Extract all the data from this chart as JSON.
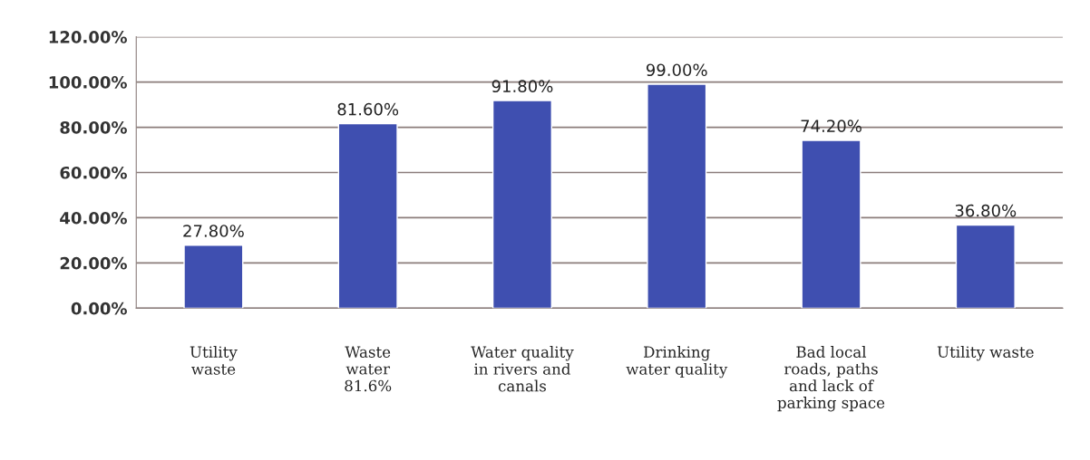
{
  "chart_data": {
    "type": "bar",
    "categories": [
      "Utility\nwaste",
      "Waste\nwater\n81.6%",
      "Water quality\nin rivers and\ncanals",
      "Drinking\nwater quality",
      "Bad local\nroads, paths\nand lack of\nparking space",
      "Utility waste"
    ],
    "values": [
      27.8,
      81.6,
      91.8,
      99.0,
      74.2,
      36.8
    ],
    "value_labels": [
      "27.80%",
      "81.60%",
      "91.80%",
      "99.00%",
      "74.20%",
      "36.80%"
    ],
    "color": "#3f4fb0",
    "ylim": [
      0,
      120
    ],
    "yticks": [
      {
        "value": 0,
        "label": "0.00%"
      },
      {
        "value": 20,
        "label": "20.00%"
      },
      {
        "value": 40,
        "label": "40.00%"
      },
      {
        "value": 60,
        "label": "60.00%"
      },
      {
        "value": 80,
        "label": "80.00%"
      },
      {
        "value": 100,
        "label": "100.00%"
      },
      {
        "value": 120,
        "label": "120.00%"
      }
    ],
    "grid": "y"
  }
}
